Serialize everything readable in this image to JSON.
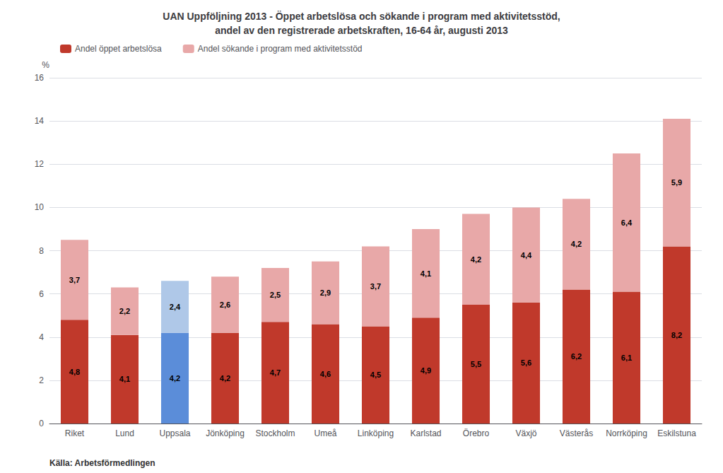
{
  "chart_data": {
    "type": "bar",
    "title": "UAN Uppföljning 2013 - Öppet arbetslösa och sökande i program med aktivitetsstöd,\nandel av den registrerade arbetskraften, 16-64 år, augusti 2013",
    "ylabel": "%",
    "categories": [
      "Riket",
      "Lund",
      "Uppsala",
      "Jönköping",
      "Stockholm",
      "Umeå",
      "Linköping",
      "Karlstad",
      "Örebro",
      "Växjö",
      "Västerås",
      "Norrköping",
      "Eskilstuna"
    ],
    "series": [
      {
        "name": "Andel öppet arbetslösa",
        "color": "#C0392B",
        "colors": [
          "#C0392B",
          "#C0392B",
          "#5B8DD9",
          "#C0392B",
          "#C0392B",
          "#C0392B",
          "#C0392B",
          "#C0392B",
          "#C0392B",
          "#C0392B",
          "#C0392B",
          "#C0392B",
          "#C0392B"
        ],
        "values": [
          4.8,
          4.1,
          4.2,
          4.2,
          4.7,
          4.6,
          4.5,
          4.9,
          5.5,
          5.6,
          6.2,
          6.1,
          8.2
        ],
        "value_labels": [
          "4,8",
          "4,1",
          "4,2",
          "4,2",
          "4,7",
          "4,6",
          "4,5",
          "4,9",
          "5,5",
          "5,6",
          "6,2",
          "6,1",
          "8,2"
        ]
      },
      {
        "name": "Andel sökande i program med aktivitetsstöd",
        "color": "#E8A8A8",
        "colors": [
          "#E8A8A8",
          "#E8A8A8",
          "#AFC8E8",
          "#E8A8A8",
          "#E8A8A8",
          "#E8A8A8",
          "#E8A8A8",
          "#E8A8A8",
          "#E8A8A8",
          "#E8A8A8",
          "#E8A8A8",
          "#E8A8A8",
          "#E8A8A8"
        ],
        "values": [
          3.7,
          2.2,
          2.4,
          2.6,
          2.5,
          2.9,
          3.7,
          4.1,
          4.2,
          4.4,
          4.2,
          6.4,
          5.9
        ],
        "value_labels": [
          "3,7",
          "2,2",
          "2,4",
          "2,6",
          "2,5",
          "2,9",
          "3,7",
          "4,1",
          "4,2",
          "4,4",
          "4,2",
          "6,4",
          "5,9"
        ]
      }
    ],
    "stacked": true,
    "data_labels": true,
    "ylim": [
      0,
      16
    ],
    "yticks": [
      0,
      2,
      4,
      6,
      8,
      10,
      12,
      14,
      16
    ],
    "grid": true,
    "legend": "upper left",
    "annotations": [
      "Källa: Arbetsförmedlingen"
    ]
  }
}
